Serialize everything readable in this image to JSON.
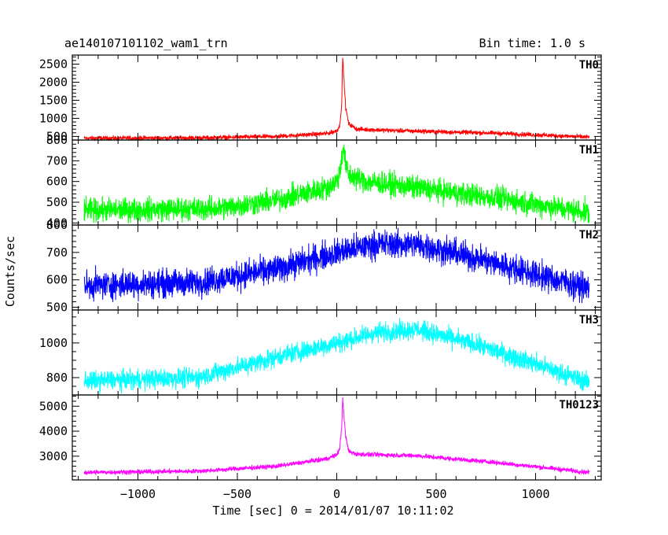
{
  "chart_data": {
    "type": "line",
    "title": "ae140107101102_wam1_trn",
    "subtitle": "Bin time: 1.0 s",
    "xlabel": "Time [sec] 0 = 2014/01/07 10:11:02",
    "ylabel": "Counts/sec",
    "xlim": [
      -1330,
      1330
    ],
    "x_ticks": [
      -1000,
      -500,
      0,
      500,
      1000
    ],
    "x_tick_labels": [
      "−1000",
      "−500",
      "0",
      "500",
      "1000"
    ],
    "x_minor_step": 100,
    "series": [
      {
        "name": "TH0",
        "color": "#ff0000",
        "ylim": [
          400,
          2750
        ],
        "y_ticks": [
          500,
          1000,
          1500,
          2000,
          2500
        ],
        "y_minor_step": 100,
        "profile": [
          [
            -1270,
            450
          ],
          [
            -700,
            460
          ],
          [
            -300,
            500
          ],
          [
            -50,
            580
          ],
          [
            0,
            650
          ],
          [
            15,
            800
          ],
          [
            25,
            1400
          ],
          [
            30,
            2700
          ],
          [
            38,
            1900
          ],
          [
            45,
            1300
          ],
          [
            60,
            850
          ],
          [
            100,
            700
          ],
          [
            300,
            660
          ],
          [
            800,
            590
          ],
          [
            1270,
            480
          ]
        ],
        "noise": 60
      },
      {
        "name": "TH1",
        "color": "#00ff00",
        "ylim": [
          390,
          800
        ],
        "y_ticks": [
          400,
          500,
          600,
          700,
          800
        ],
        "y_minor_step": 20,
        "profile": [
          [
            -1270,
            460
          ],
          [
            -600,
            470
          ],
          [
            -300,
            510
          ],
          [
            -50,
            570
          ],
          [
            0,
            600
          ],
          [
            15,
            650
          ],
          [
            25,
            710
          ],
          [
            32,
            770
          ],
          [
            45,
            680
          ],
          [
            60,
            630
          ],
          [
            150,
            600
          ],
          [
            400,
            570
          ],
          [
            800,
            520
          ],
          [
            1270,
            450
          ]
        ],
        "noise": 55
      },
      {
        "name": "TH2",
        "color": "#0000ff",
        "ylim": [
          490,
          800
        ],
        "y_ticks": [
          500,
          600,
          700,
          800
        ],
        "y_minor_step": 20,
        "profile": [
          [
            -1270,
            580
          ],
          [
            -700,
            590
          ],
          [
            -300,
            640
          ],
          [
            0,
            700
          ],
          [
            200,
            730
          ],
          [
            400,
            730
          ],
          [
            700,
            680
          ],
          [
            1000,
            620
          ],
          [
            1270,
            570
          ]
        ],
        "noise": 50
      },
      {
        "name": "TH3",
        "color": "#00ffff",
        "ylim": [
          700,
          1190
        ],
        "y_ticks": [
          800,
          1000
        ],
        "y_minor_step": 50,
        "profile": [
          [
            -1270,
            780
          ],
          [
            -700,
            800
          ],
          [
            -300,
            920
          ],
          [
            0,
            1000
          ],
          [
            200,
            1060
          ],
          [
            400,
            1080
          ],
          [
            700,
            990
          ],
          [
            1000,
            880
          ],
          [
            1270,
            770
          ]
        ],
        "noise": 55
      },
      {
        "name": "TH0123",
        "color": "#ff00ff",
        "ylim": [
          2050,
          5450
        ],
        "y_ticks": [
          3000,
          4000,
          5000
        ],
        "y_minor_step": 200,
        "profile": [
          [
            -1270,
            2350
          ],
          [
            -700,
            2400
          ],
          [
            -300,
            2600
          ],
          [
            -50,
            2900
          ],
          [
            0,
            3050
          ],
          [
            15,
            3300
          ],
          [
            25,
            4200
          ],
          [
            30,
            5350
          ],
          [
            38,
            4400
          ],
          [
            45,
            3800
          ],
          [
            60,
            3200
          ],
          [
            100,
            3080
          ],
          [
            400,
            3020
          ],
          [
            800,
            2750
          ],
          [
            1270,
            2350
          ]
        ],
        "noise": 90
      }
    ]
  }
}
